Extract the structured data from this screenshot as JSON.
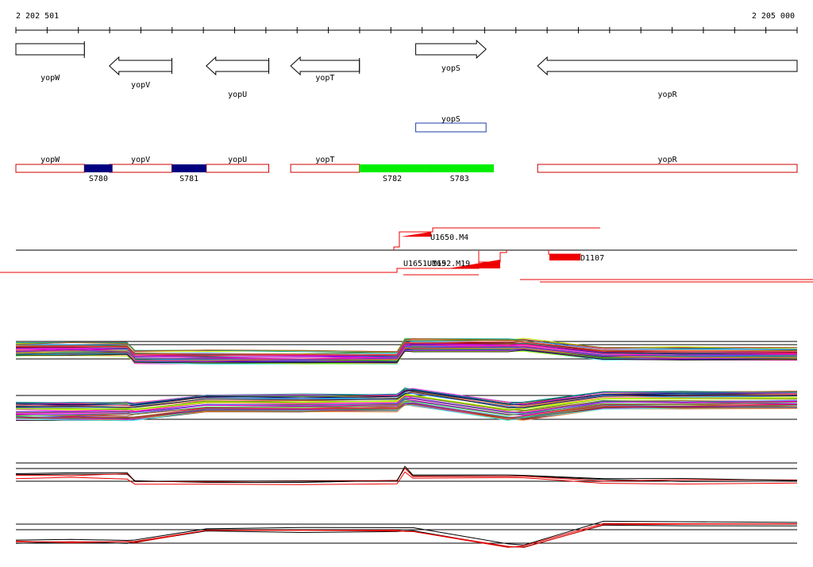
{
  "ruler": {
    "start_label": "2 202 501",
    "end_label": "2 205 000",
    "start_coord": 2202501,
    "end_coord": 2205000
  },
  "genes": [
    {
      "name": "yopW",
      "strand": "+",
      "start": 2202501,
      "end": 2202720
    },
    {
      "name": "yopV",
      "strand": "-",
      "start": 2202800,
      "end": 2203000
    },
    {
      "name": "yopU",
      "strand": "-",
      "start": 2203110,
      "end": 2203310
    },
    {
      "name": "yopT",
      "strand": "-",
      "start": 2203380,
      "end": 2203600
    },
    {
      "name": "yopS",
      "strand": "+",
      "start": 2203780,
      "end": 2204005
    },
    {
      "name": "yopR",
      "strand": "-",
      "start": 2204170,
      "end": 2205000
    }
  ],
  "feature_track": [
    {
      "name": "yopS",
      "start": 2203780,
      "end": 2204005,
      "color": "#1e3ea8"
    }
  ],
  "segments": {
    "genes": [
      {
        "name": "yopW",
        "start": 2202501,
        "end": 2202720
      },
      {
        "name": "yopV",
        "start": 2202800,
        "end": 2203000
      },
      {
        "name": "yopU",
        "start": 2203110,
        "end": 2203310
      },
      {
        "name": "yopT",
        "start": 2203380,
        "end": 2203600
      },
      {
        "name": "yopR",
        "start": 2204170,
        "end": 2205000
      }
    ],
    "blocks": [
      {
        "name": "S780",
        "start": 2202720,
        "end": 2202810,
        "color": "#000080"
      },
      {
        "name": "S781",
        "start": 2203000,
        "end": 2203110,
        "color": "#000080"
      },
      {
        "name": "S782",
        "start": 2203600,
        "end": 2203810,
        "color": "#00ee00"
      },
      {
        "name": "S783",
        "start": 2203810,
        "end": 2204030,
        "color": "#00ee00"
      }
    ],
    "outline_color": "#cc0000"
  },
  "transcripts": [
    {
      "name": "U1650.M4",
      "label_side": "right"
    },
    {
      "name": "U1651.M19",
      "label_side": "left"
    },
    {
      "name": "U1652.M19",
      "label_side": "left"
    },
    {
      "name": "D1107",
      "label_side": "right"
    }
  ],
  "colors": {
    "ink": "#000000",
    "red": "#ee0000",
    "blue": "#1e3ea8",
    "green": "#00ee00",
    "navy": "#000080"
  }
}
